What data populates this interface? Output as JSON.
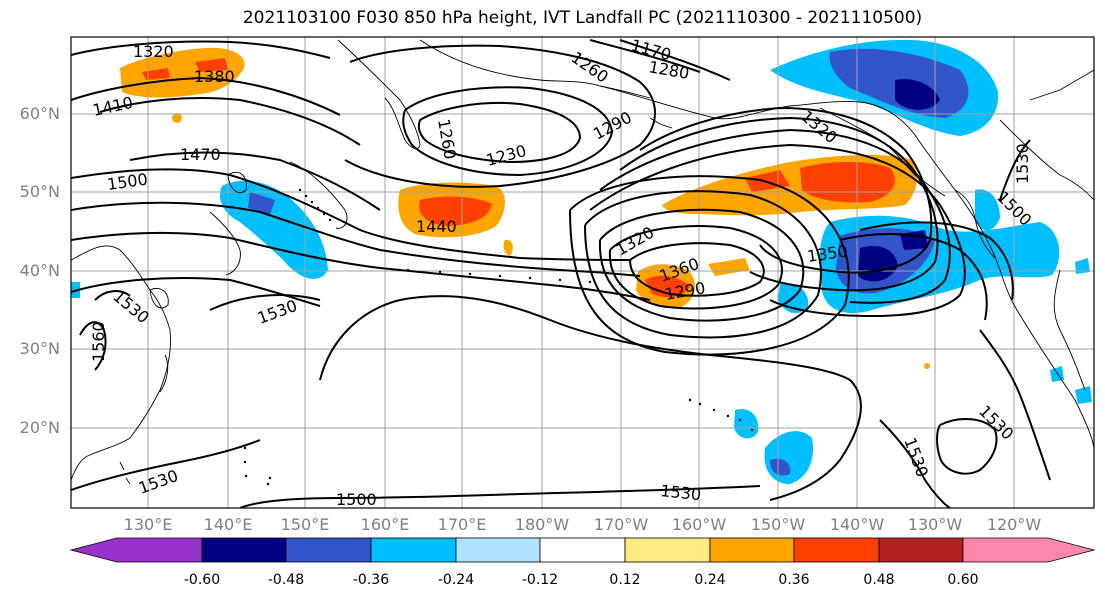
{
  "title": "2021103100 F030 850 hPa height, IVT Landfall PC (2021110300 - 2021110500)",
  "lat_labels": [
    "60°N",
    "50°N",
    "40°N",
    "30°N",
    "20°N"
  ],
  "lon_labels": [
    "130°E",
    "140°E",
    "150°E",
    "160°E",
    "170°E",
    "180°W",
    "170°W",
    "160°W",
    "150°W",
    "140°W",
    "130°W",
    "120°W"
  ],
  "contour_labels": [
    "1320",
    "1380",
    "1410",
    "1470",
    "1500",
    "1440",
    "1260",
    "1230",
    "1290",
    "1170",
    "1260",
    "1280",
    "1320",
    "1320",
    "1350",
    "1360",
    "1290",
    "1530",
    "1530",
    "1560",
    "1530",
    "1530",
    "1530",
    "1500",
    "1500",
    "1530",
    "1530"
  ],
  "colorbar": {
    "ticks": [
      "-0.60",
      "-0.48",
      "-0.36",
      "-0.24",
      "-0.12",
      "0.12",
      "0.24",
      "0.36",
      "0.48",
      "0.60"
    ],
    "colors": [
      "#9933cc",
      "#000080",
      "#3355cc",
      "#00bfff",
      "#b0e2ff",
      "#ffffff",
      "#ffeb80",
      "#ffa500",
      "#ff4000",
      "#b22222",
      "#ff88aa"
    ]
  }
}
